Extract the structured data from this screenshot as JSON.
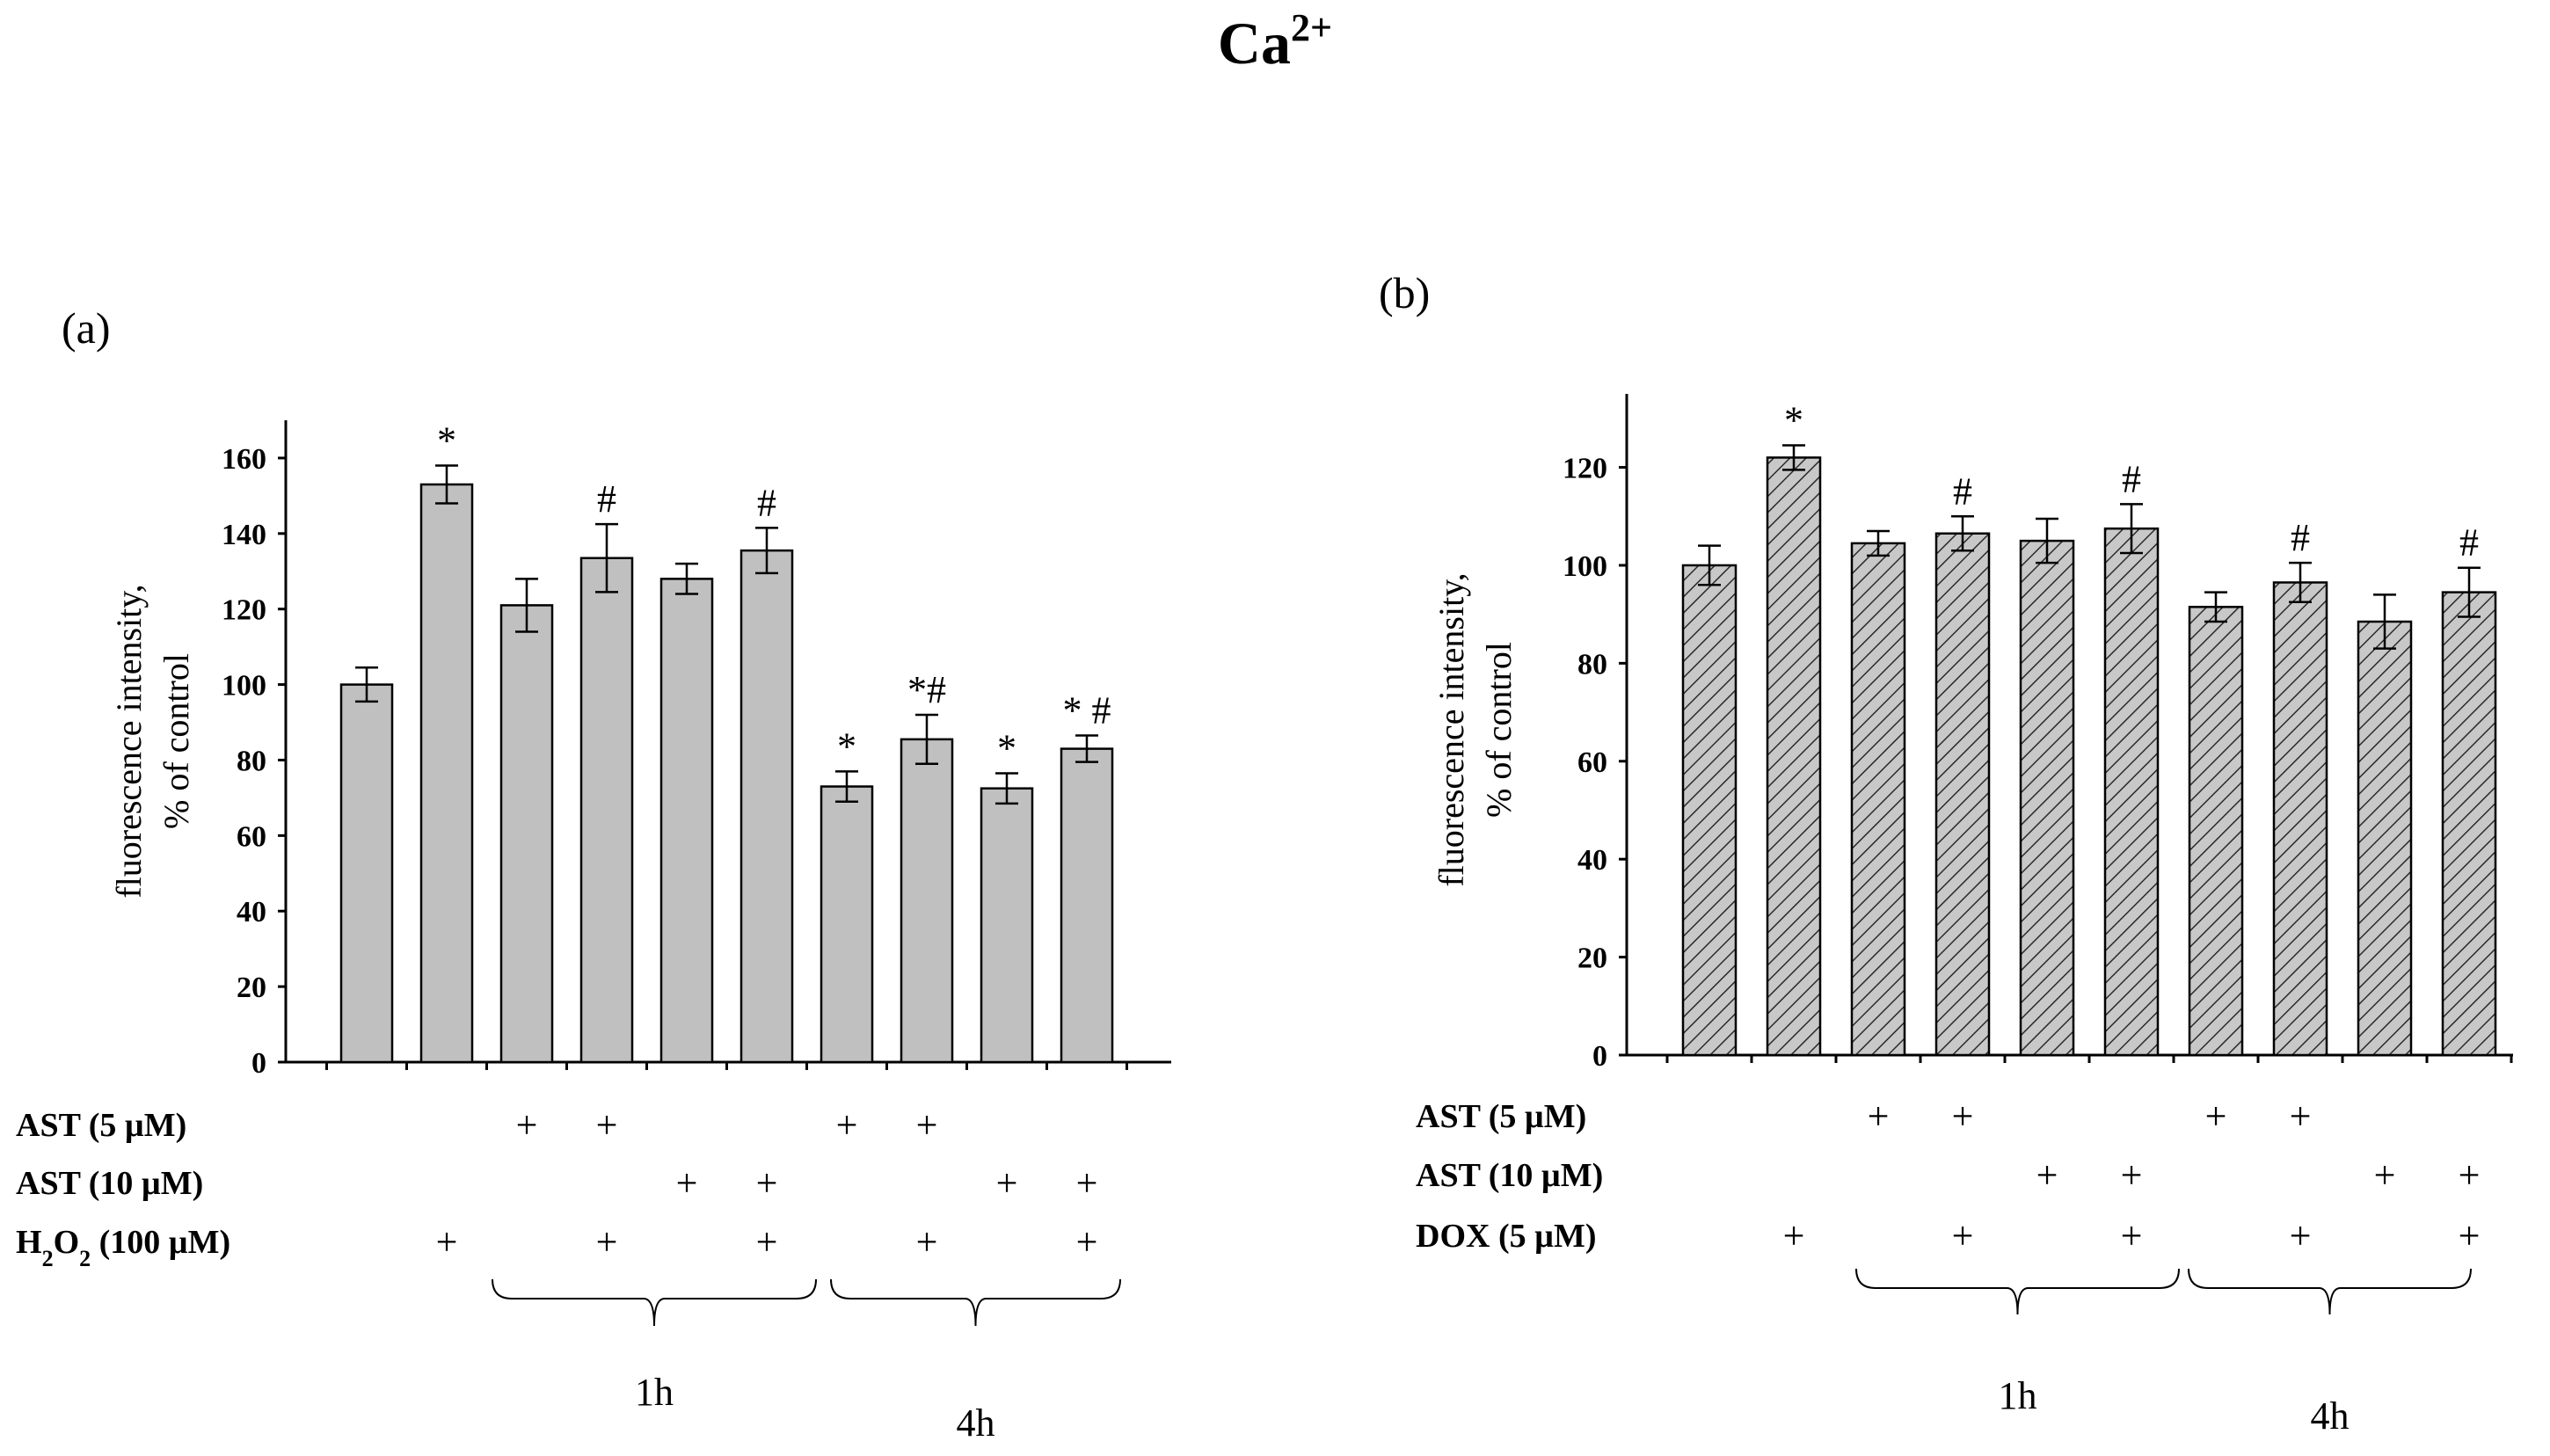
{
  "figure": {
    "title_main": "Ca",
    "title_sup": "2+"
  },
  "colors": {
    "bar_fill_a": "#c0c0c0",
    "bar_fill_b": "#c8c8c8",
    "hatch": "#2a2a2a",
    "axis": "#000000"
  },
  "chart_data": [
    {
      "id": "a",
      "type": "bar",
      "panel_label": "(a)",
      "ylabel_line1": "fluorescence intensity,",
      "ylabel_line2": "% of control",
      "ylim": [
        0,
        170
      ],
      "yticks": [
        0,
        20,
        40,
        60,
        80,
        100,
        120,
        140,
        160
      ],
      "fill": "solid-gray",
      "values": [
        100,
        153,
        121,
        133.5,
        128,
        135.5,
        73,
        85.5,
        72.5,
        83
      ],
      "errors": [
        4.5,
        5,
        7,
        9,
        4,
        6,
        4,
        6.5,
        4,
        3.5
      ],
      "annotations": [
        "",
        "*",
        "",
        "#",
        "",
        "#",
        "*",
        "*#",
        "*",
        "* #"
      ],
      "treatment_rows": [
        {
          "label_html": "AST (5 µM)",
          "marks": [
            false,
            false,
            true,
            true,
            false,
            false,
            true,
            true,
            false,
            false
          ]
        },
        {
          "label_html": "AST (10 µM)",
          "marks": [
            false,
            false,
            false,
            false,
            true,
            true,
            false,
            false,
            true,
            true
          ]
        },
        {
          "label_html": "H<tspan baseline-shift=\"sub\" font-size=\"26\">2</tspan>O<tspan baseline-shift=\"sub\" font-size=\"26\">2</tspan> (100 µM)",
          "marks": [
            false,
            true,
            false,
            true,
            false,
            true,
            false,
            true,
            false,
            true
          ]
        }
      ],
      "groups": [
        {
          "label": "1h",
          "from": 2,
          "to": 5
        },
        {
          "label": "4h",
          "from": 6,
          "to": 9
        }
      ]
    },
    {
      "id": "b",
      "type": "bar",
      "panel_label": "(b)",
      "ylabel_line1": "fluorescence intensity,",
      "ylabel_line2": "% of control",
      "ylim": [
        0,
        135
      ],
      "yticks": [
        0,
        20,
        40,
        60,
        80,
        100,
        120
      ],
      "fill": "hatched",
      "values": [
        100,
        122,
        104.5,
        106.5,
        105,
        107.5,
        91.5,
        96.5,
        88.5,
        94.5
      ],
      "errors": [
        4,
        2.5,
        2.5,
        3.5,
        4.5,
        5,
        3,
        4,
        5.5,
        5
      ],
      "annotations": [
        "",
        "*",
        "",
        "#",
        "",
        "#",
        "",
        "#",
        "",
        "#"
      ],
      "treatment_rows": [
        {
          "label_html": "AST (5 µM)",
          "marks": [
            false,
            false,
            true,
            true,
            false,
            false,
            true,
            true,
            false,
            false
          ]
        },
        {
          "label_html": "AST (10 µM)",
          "marks": [
            false,
            false,
            false,
            false,
            true,
            true,
            false,
            false,
            true,
            true
          ]
        },
        {
          "label_html": "DOX (5 µM)",
          "marks": [
            false,
            true,
            false,
            true,
            false,
            true,
            false,
            true,
            false,
            true
          ]
        }
      ],
      "groups": [
        {
          "label": "1h",
          "from": 2,
          "to": 5
        },
        {
          "label": "4h",
          "from": 6,
          "to": 9
        }
      ]
    }
  ]
}
